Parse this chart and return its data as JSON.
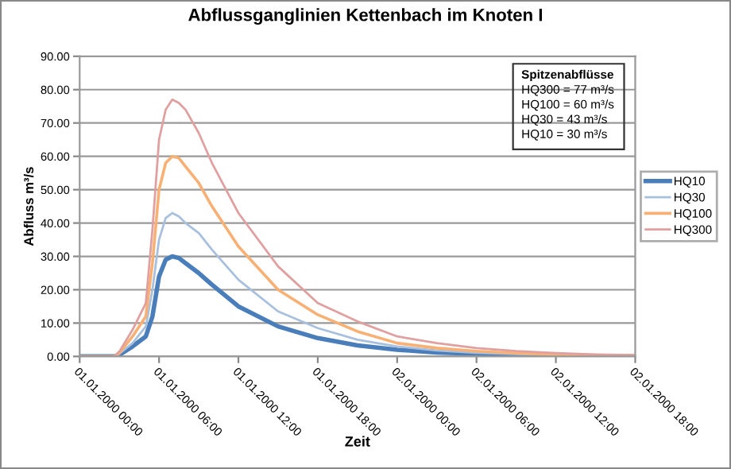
{
  "chart_data": {
    "type": "line",
    "title": "Abflussganglinien Kettenbach im Knoten I",
    "xlabel": "Zeit",
    "ylabel": "Abfluss m³/s",
    "x": [
      "2000-01-01T00:00",
      "2000-01-01T02:36",
      "2000-01-01T03:00",
      "2000-01-01T04:00",
      "2000-01-01T05:00",
      "2000-01-01T05:30",
      "2000-01-01T06:00",
      "2000-01-01T06:30",
      "2000-01-01T07:00",
      "2000-01-01T07:30",
      "2000-01-01T08:00",
      "2000-01-01T09:00",
      "2000-01-01T10:00",
      "2000-01-01T12:00",
      "2000-01-01T15:00",
      "2000-01-01T18:00",
      "2000-01-01T21:00",
      "2000-01-02T00:00",
      "2000-01-02T03:00",
      "2000-01-02T06:00",
      "2000-01-02T09:00",
      "2000-01-02T12:00",
      "2000-01-02T15:00",
      "2000-01-02T18:00"
    ],
    "series": [
      {
        "name": "HQ10",
        "color": "#4a7ebb",
        "values": [
          0,
          0,
          0.5,
          3,
          6,
          12,
          24,
          29,
          30,
          29.5,
          28,
          25,
          21.5,
          15,
          9,
          5.5,
          3.3,
          2,
          1.2,
          0.8,
          0.5,
          0.3,
          null,
          null
        ]
      },
      {
        "name": "HQ30",
        "color": "#a7c0de",
        "values": [
          0,
          0,
          0.8,
          4,
          9,
          20,
          35,
          41.5,
          43,
          42,
          40,
          37,
          32,
          23,
          13.5,
          8.5,
          5,
          3,
          1.8,
          1.1,
          0.7,
          0.4,
          0.3,
          0.2
        ]
      },
      {
        "name": "HQ100",
        "color": "#f9b074",
        "values": [
          0,
          0,
          1,
          6,
          12,
          28,
          50,
          58,
          60,
          59.5,
          57,
          52,
          45,
          33,
          20,
          12.5,
          7.5,
          4,
          2.5,
          1.6,
          1,
          0.6,
          0.4,
          0.3
        ]
      },
      {
        "name": "HQ300",
        "color": "#e0a0a0",
        "values": [
          0,
          0,
          1.5,
          8,
          16,
          38,
          65,
          74,
          77,
          76,
          74,
          67,
          58,
          43,
          27,
          16,
          10.5,
          6,
          4,
          2.5,
          1.6,
          1,
          0.6,
          0.4
        ]
      }
    ],
    "xlim": [
      "2000-01-01T00:00",
      "2000-01-02T18:00"
    ],
    "xticks": [
      {
        "value": "2000-01-01T00:00",
        "label": "01.01.2000 00:00"
      },
      {
        "value": "2000-01-01T06:00",
        "label": "01.01.2000 06:00"
      },
      {
        "value": "2000-01-01T12:00",
        "label": "01.01.2000 12:00"
      },
      {
        "value": "2000-01-01T18:00",
        "label": "01.01.2000 18:00"
      },
      {
        "value": "2000-01-02T00:00",
        "label": "02.01.2000 00:00"
      },
      {
        "value": "2000-01-02T06:00",
        "label": "02.01.2000 06:00"
      },
      {
        "value": "2000-01-02T12:00",
        "label": "02.01.2000 12:00"
      },
      {
        "value": "2000-01-02T18:00",
        "label": "02.01.2000 18:00"
      }
    ],
    "ylim": [
      0,
      90
    ],
    "yticks": [
      {
        "value": 0,
        "label": "0.00"
      },
      {
        "value": 10,
        "label": "10.00"
      },
      {
        "value": 20,
        "label": "20.00"
      },
      {
        "value": 30,
        "label": "30.00"
      },
      {
        "value": 40,
        "label": "40.00"
      },
      {
        "value": 50,
        "label": "50.00"
      },
      {
        "value": 60,
        "label": "60.00"
      },
      {
        "value": 70,
        "label": "70.00"
      },
      {
        "value": 80,
        "label": "80.00"
      },
      {
        "value": 90,
        "label": "90.00"
      }
    ],
    "grid": "y",
    "legend": "right",
    "marker": "none",
    "line_style": "solid",
    "annotations": [
      "Spitzenabflüsse",
      "HQ300 = 77 m³/s",
      "HQ100 = 60 m³/s",
      "HQ30 = 43 m³/s",
      "HQ10 = 30 m³/s"
    ]
  }
}
